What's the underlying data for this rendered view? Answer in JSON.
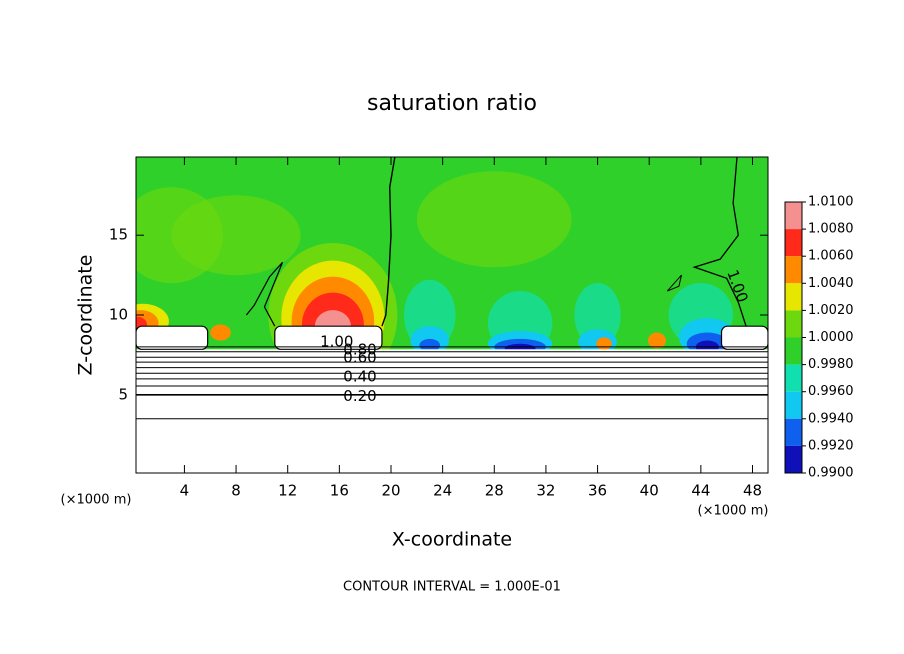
{
  "chart_data": {
    "type": "contour",
    "title": "saturation ratio",
    "x_label": "X-coordinate",
    "y_label": "Z-coordinate",
    "x_unit_left": "(×1000 m)",
    "x_unit_right": "(×1000 m)",
    "footer": "CONTOUR INTERVAL = 1.000E-01",
    "xlim": [
      0.25,
      49.2
    ],
    "ylim": [
      0.1,
      19.9
    ],
    "xticks": [
      4,
      8,
      12,
      16,
      20,
      24,
      28,
      32,
      36,
      40,
      44,
      48
    ],
    "yticks": [
      5,
      10,
      15
    ],
    "contour_labels": [
      "1.00",
      "0.80",
      "0.60",
      "0.40",
      "0.20",
      "1.00"
    ],
    "colorbar": {
      "ticks": [
        {
          "value": 1.01,
          "label": "1.0100"
        },
        {
          "value": 1.008,
          "label": "1.0080"
        },
        {
          "value": 1.006,
          "label": "1.0060"
        },
        {
          "value": 1.004,
          "label": "1.0040"
        },
        {
          "value": 1.002,
          "label": "1.0020"
        },
        {
          "value": 1.0,
          "label": "1.0000"
        },
        {
          "value": 0.998,
          "label": "0.9980"
        },
        {
          "value": 0.996,
          "label": "0.9960"
        },
        {
          "value": 0.994,
          "label": "0.9940"
        },
        {
          "value": 0.992,
          "label": "0.9920"
        },
        {
          "value": 0.99,
          "label": "0.9900"
        }
      ],
      "colors": [
        "#f49090",
        "#ff2a1a",
        "#ff8a00",
        "#e6e600",
        "#6ed80e",
        "#2fd02a",
        "#10e0b0",
        "#10c8f0",
        "#1060f0",
        "#1010b8"
      ]
    }
  }
}
